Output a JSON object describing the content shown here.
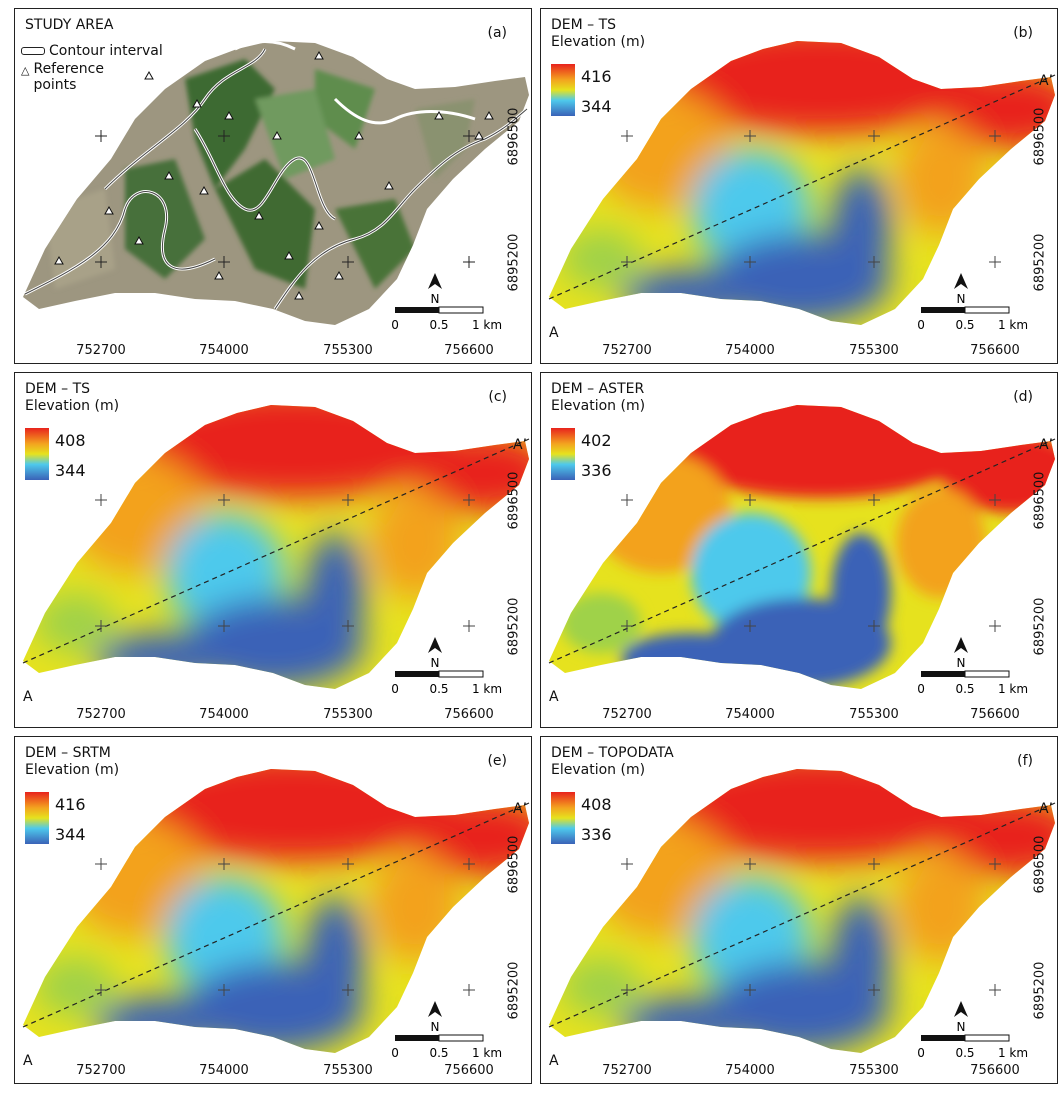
{
  "panels": {
    "a": {
      "label": "(a)",
      "title": "STUDY AREA",
      "legend_contour": "Contour interval",
      "legend_points_1": "Reference",
      "legend_points_2": "points"
    },
    "b": {
      "label": "(b)",
      "title": "DEM – TS",
      "subtitle": "Elevation (m)",
      "max": "416",
      "min": "344"
    },
    "c": {
      "label": "(c)",
      "title": "DEM – TS",
      "subtitle": "Elevation (m)",
      "max": "408",
      "min": "344"
    },
    "d": {
      "label": "(d)",
      "title": "DEM – ASTER",
      "subtitle": "Elevation (m)",
      "max": "402",
      "min": "336"
    },
    "e": {
      "label": "(e)",
      "title": "DEM – SRTM",
      "subtitle": "Elevation (m)",
      "max": "416",
      "min": "344"
    },
    "f": {
      "label": "(f)",
      "title": "DEM – TOPODATA",
      "subtitle": "Elevation (m)",
      "max": "408",
      "min": "336"
    }
  },
  "axes": {
    "x_ticks": [
      "752700",
      "754000",
      "755300",
      "756600"
    ],
    "y_ticks": [
      "6896500",
      "6895200"
    ]
  },
  "profile": {
    "start": "A",
    "end": "A’"
  },
  "scale_bar": {
    "t0": "0",
    "t1": "0.5",
    "t2": "1 km"
  },
  "north": "N",
  "colors": {
    "high": "#e8231d",
    "mid": "#e6e21e",
    "low": "#3a62b7",
    "aerial_green": "#3c6b32",
    "aerial_tan": "#9d9680"
  }
}
